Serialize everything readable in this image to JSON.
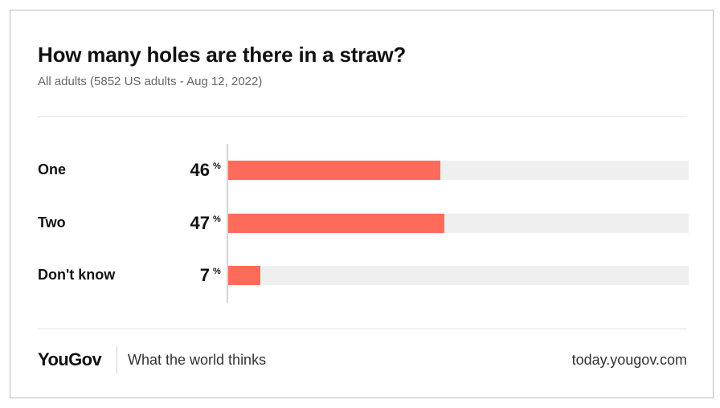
{
  "chart_data": {
    "type": "bar",
    "orientation": "horizontal",
    "title": "How many holes are there in a straw?",
    "subtitle": "All adults (5852 US adults - Aug 12, 2022)",
    "categories": [
      "One",
      "Two",
      "Don't know"
    ],
    "values": [
      46,
      47,
      7
    ],
    "value_labels": [
      "46",
      "47",
      "7"
    ],
    "unit": "%",
    "xlim": [
      0,
      100
    ],
    "grid": false,
    "bar_color": "#ff6b5b",
    "track_color": "#efefef"
  },
  "footer": {
    "logo": "YouGov",
    "tagline": "What the world thinks",
    "url": "today.yougov.com"
  }
}
